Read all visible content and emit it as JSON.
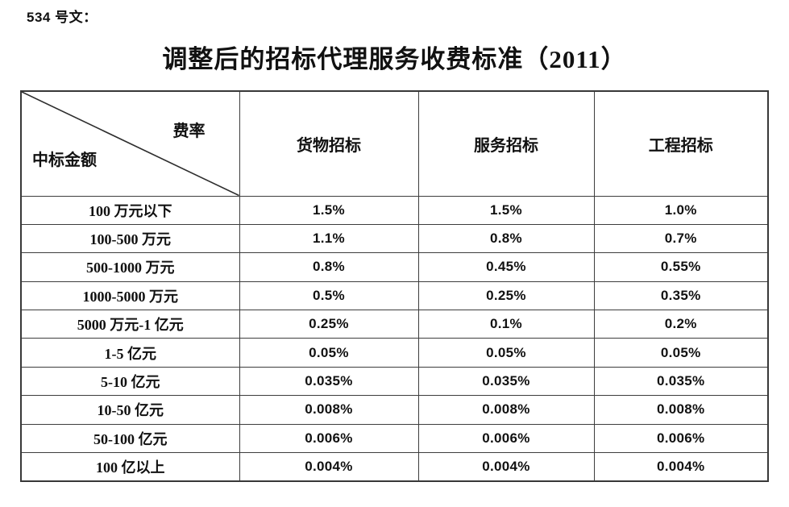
{
  "page": {
    "doc_label": "534 号文：",
    "title": "调整后的招标代理服务收费标准（2011）"
  },
  "table": {
    "corner_top_right": "费率",
    "corner_bottom_left": "中标金额",
    "columns": [
      "货物招标",
      "服务招标",
      "工程招标"
    ],
    "rows": [
      {
        "amount": "100 万元以下",
        "values": [
          "1.5%",
          "1.5%",
          "1.0%"
        ]
      },
      {
        "amount": "100-500 万元",
        "values": [
          "1.1%",
          "0.8%",
          "0.7%"
        ]
      },
      {
        "amount": "500-1000 万元",
        "values": [
          "0.8%",
          "0.45%",
          "0.55%"
        ]
      },
      {
        "amount": "1000-5000 万元",
        "values": [
          "0.5%",
          "0.25%",
          "0.35%"
        ]
      },
      {
        "amount": "5000 万元-1 亿元",
        "values": [
          "0.25%",
          "0.1%",
          "0.2%"
        ]
      },
      {
        "amount": "1-5 亿元",
        "values": [
          "0.05%",
          "0.05%",
          "0.05%"
        ]
      },
      {
        "amount": "5-10 亿元",
        "values": [
          "0.035%",
          "0.035%",
          "0.035%"
        ]
      },
      {
        "amount": "10-50 亿元",
        "values": [
          "0.008%",
          "0.008%",
          "0.008%"
        ]
      },
      {
        "amount": "50-100 亿元",
        "values": [
          "0.006%",
          "0.006%",
          "0.006%"
        ]
      },
      {
        "amount": "100 亿以上",
        "values": [
          "0.004%",
          "0.004%",
          "0.004%"
        ]
      }
    ],
    "style": {
      "border_color": "#3d3d3d",
      "text_color": "#111111",
      "background": "#ffffff"
    }
  }
}
